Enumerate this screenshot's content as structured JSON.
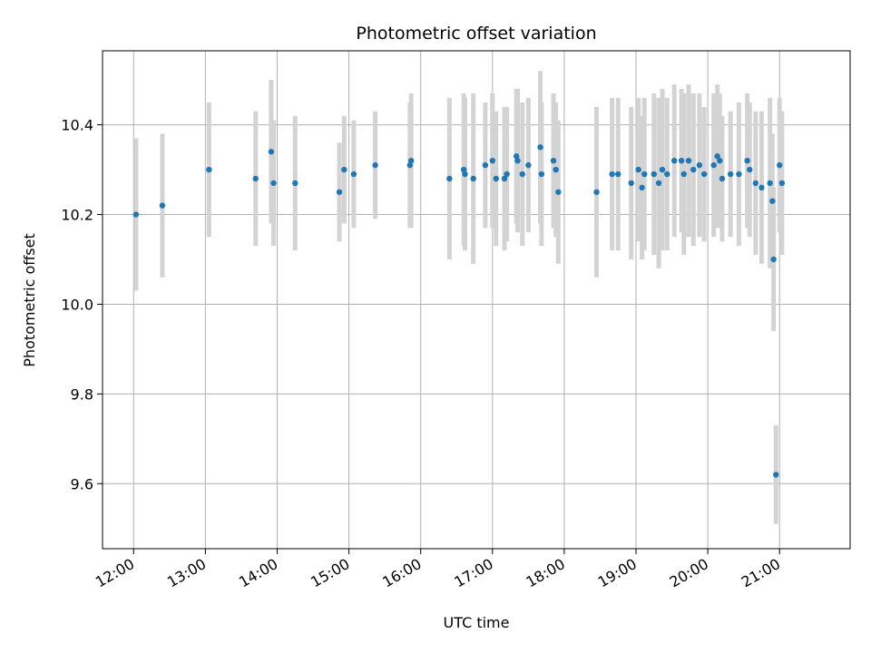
{
  "chart_data": {
    "type": "scatter",
    "title": "Photometric offset variation",
    "xlabel": "UTC time",
    "ylabel": "Photometric offset",
    "x_ticks": [
      "12:00",
      "13:00",
      "14:00",
      "15:00",
      "16:00",
      "17:00",
      "18:00",
      "19:00",
      "20:00",
      "21:00"
    ],
    "x_tick_minutes": [
      720,
      780,
      840,
      900,
      960,
      1020,
      1080,
      1140,
      1200,
      1260
    ],
    "y_ticks": [
      "9.6",
      "9.8",
      "10.0",
      "10.2",
      "10.4"
    ],
    "y_tick_values": [
      9.6,
      9.8,
      10.0,
      10.2,
      10.4
    ],
    "xlim_minutes": [
      694,
      1319
    ],
    "ylim": [
      9.455,
      10.565
    ],
    "grid": true,
    "colors": {
      "point": "#1f77b4",
      "errorbar": "#d3d3d3",
      "grid": "#b0b0b0"
    },
    "series": [
      {
        "x_minutes": [
          722,
          744,
          783,
          822,
          835,
          837,
          855,
          892,
          896,
          904,
          922,
          951,
          952,
          984,
          996,
          997,
          1004,
          1014,
          1020,
          1023,
          1030,
          1032,
          1040,
          1041,
          1045,
          1050,
          1060,
          1061,
          1071,
          1073,
          1075,
          1107,
          1120,
          1125,
          1136,
          1142,
          1145,
          1147,
          1155,
          1159,
          1162,
          1166,
          1172,
          1178,
          1180,
          1184,
          1188,
          1193,
          1197,
          1205,
          1208,
          1210,
          1212,
          1219,
          1226,
          1233,
          1235,
          1240,
          1245,
          1252,
          1254,
          1255,
          1257,
          1260,
          1262
        ],
        "y": [
          10.2,
          10.22,
          10.3,
          10.28,
          10.34,
          10.27,
          10.27,
          10.25,
          10.3,
          10.29,
          10.31,
          10.31,
          10.32,
          10.28,
          10.3,
          10.29,
          10.28,
          10.31,
          10.32,
          10.28,
          10.28,
          10.29,
          10.33,
          10.32,
          10.29,
          10.31,
          10.35,
          10.29,
          10.32,
          10.3,
          10.25,
          10.25,
          10.29,
          10.29,
          10.27,
          10.3,
          10.26,
          10.29,
          10.29,
          10.27,
          10.3,
          10.29,
          10.32,
          10.32,
          10.29,
          10.32,
          10.3,
          10.31,
          10.29,
          10.31,
          10.33,
          10.32,
          10.28,
          10.29,
          10.29,
          10.32,
          10.3,
          10.27,
          10.26,
          10.27,
          10.23,
          10.1,
          9.62,
          10.31,
          10.27
        ],
        "err": [
          0.17,
          0.16,
          0.15,
          0.15,
          0.16,
          0.14,
          0.15,
          0.11,
          0.12,
          0.12,
          0.12,
          0.14,
          0.15,
          0.18,
          0.17,
          0.17,
          0.19,
          0.14,
          0.15,
          0.15,
          0.16,
          0.15,
          0.15,
          0.16,
          0.16,
          0.15,
          0.17,
          0.16,
          0.15,
          0.15,
          0.16,
          0.19,
          0.17,
          0.17,
          0.17,
          0.16,
          0.16,
          0.17,
          0.18,
          0.19,
          0.18,
          0.17,
          0.17,
          0.16,
          0.18,
          0.17,
          0.17,
          0.16,
          0.15,
          0.16,
          0.16,
          0.15,
          0.14,
          0.14,
          0.16,
          0.15,
          0.15,
          0.16,
          0.17,
          0.19,
          0.15,
          0.16,
          0.11,
          0.15,
          0.16
        ]
      }
    ]
  }
}
